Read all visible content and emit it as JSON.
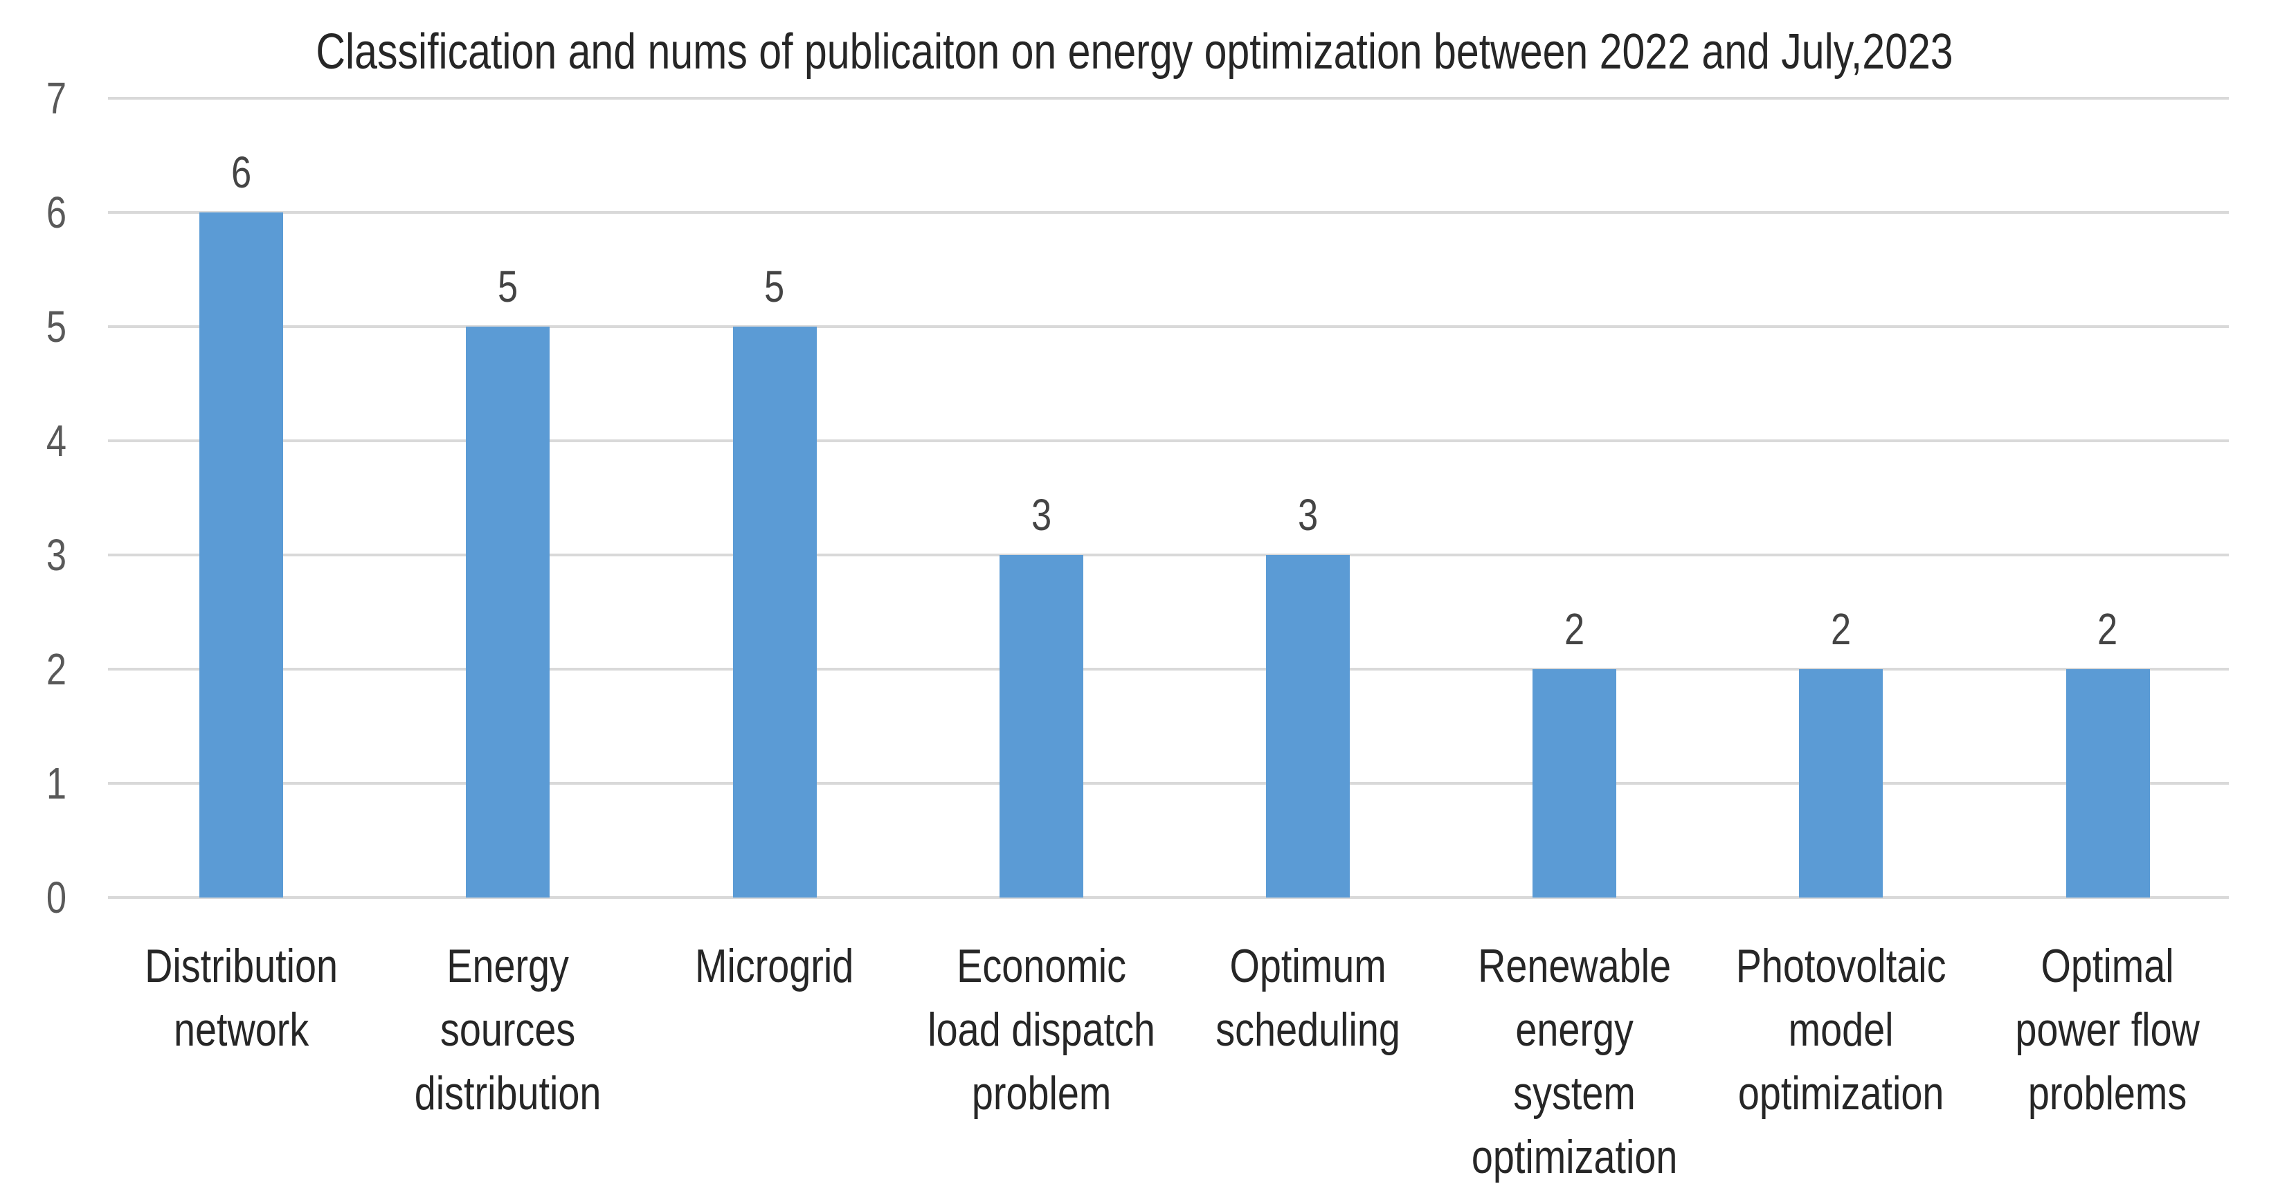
{
  "chart_data": {
    "type": "bar",
    "title": "Classification and nums of publicaiton on energy optimization between 2022 and July,2023",
    "categories": [
      "Distribution network",
      "Energy sources distribution",
      "Microgrid",
      "Economic load dispatch problem",
      "Optimum scheduling",
      "Renewable energy system optimization",
      "Photovoltaic model optimization",
      "Optimal power flow problems"
    ],
    "category_display_lines": [
      [
        "Distribution",
        "network"
      ],
      [
        "Energy",
        "sources",
        "distribution"
      ],
      [
        "Microgrid"
      ],
      [
        "Economic",
        "load dispatch",
        "problem"
      ],
      [
        "Optimum",
        "scheduling"
      ],
      [
        "Renewable",
        "energy",
        "system",
        "optimization"
      ],
      [
        "Photovoltaic",
        "model",
        "optimization"
      ],
      [
        "Optimal",
        "power flow",
        "problems"
      ]
    ],
    "values": [
      6,
      5,
      5,
      3,
      3,
      2,
      2,
      2
    ],
    "data_labels": [
      "6",
      "5",
      "5",
      "3",
      "3",
      "2",
      "2",
      "2"
    ],
    "xlabel": "",
    "ylabel": "",
    "ylim": [
      0,
      7
    ],
    "y_ticks": [
      "0",
      "1",
      "2",
      "3",
      "4",
      "5",
      "6",
      "7"
    ],
    "grid": "horizontal",
    "legend": "none",
    "colors": {
      "bar": "#5b9bd5",
      "gridline": "#d9d9d9",
      "tick_label": "#595959",
      "data_label": "#444444",
      "category_label": "#262626",
      "title": "#262626",
      "background": "#ffffff"
    }
  }
}
